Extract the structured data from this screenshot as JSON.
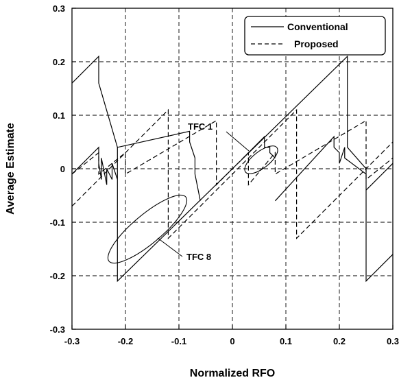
{
  "chart_data": {
    "type": "line",
    "title": "",
    "xlabel": "Normalized RFO",
    "ylabel": "Average Estimate",
    "xlim": [
      -0.3,
      0.3
    ],
    "ylim": [
      -0.3,
      0.3
    ],
    "xticks": [
      -0.3,
      -0.2,
      -0.1,
      0,
      0.1,
      0.2,
      0.3
    ],
    "yticks": [
      -0.3,
      -0.2,
      -0.1,
      0,
      0.1,
      0.2,
      0.3
    ],
    "xtick_labels": [
      "-0.3",
      "-0.2",
      "-0.1",
      "0",
      "0.1",
      "0.2",
      "0.3"
    ],
    "ytick_labels": [
      "-0.3",
      "-0.2",
      "-0.1",
      "0",
      "0.1",
      "0.2",
      "0.3"
    ],
    "grid": true,
    "legend_position": "top-right",
    "series": [
      {
        "name": "Conventional",
        "style": "solid",
        "x": [
          -0.3,
          -0.25,
          -0.25,
          -0.215,
          -0.215,
          0.215,
          0.215,
          0.25,
          0.25,
          0.3,
          null,
          -0.3,
          -0.25,
          -0.25,
          -0.245,
          -0.245,
          -0.235,
          -0.235,
          -0.225,
          -0.225,
          -0.215,
          -0.215,
          -0.08,
          -0.08,
          -0.07,
          -0.07,
          -0.06,
          null,
          0.02,
          0.06,
          0.06,
          0.07,
          0.07,
          0.08,
          null,
          0.08,
          0.19,
          0.19,
          0.2,
          0.2,
          0.21,
          0.21,
          0.25,
          0.25,
          0.3
        ],
        "y": [
          0.16,
          0.21,
          0.16,
          0.04,
          -0.21,
          0.21,
          0.04,
          0.0,
          -0.21,
          -0.16,
          null,
          -0.01,
          0.04,
          0.01,
          -0.02,
          0.02,
          -0.03,
          0.0,
          -0.02,
          0.01,
          -0.02,
          0.04,
          0.07,
          0.05,
          0.02,
          -0.01,
          -0.06,
          null,
          0.02,
          0.06,
          0.04,
          0.04,
          0.03,
          0.02,
          null,
          -0.06,
          0.06,
          0.04,
          0.03,
          0.01,
          0.04,
          0.02,
          -0.01,
          -0.04,
          0.01
        ]
      },
      {
        "name": "Proposed",
        "style": "dashed",
        "x": [
          -0.3,
          -0.12,
          -0.12,
          0.12,
          0.12,
          0.3,
          null,
          -0.3,
          -0.25,
          -0.25,
          -0.2,
          -0.2,
          -0.03,
          -0.03,
          0.03,
          0.03,
          0.08,
          0.08,
          0.25,
          0.25,
          0.3
        ],
        "y": [
          -0.07,
          0.11,
          -0.13,
          0.11,
          -0.13,
          0.05,
          null,
          -0.01,
          0.03,
          -0.01,
          0.03,
          -0.01,
          0.09,
          -0.03,
          0.03,
          -0.03,
          0.03,
          -0.01,
          0.09,
          -0.02,
          0.02
        ]
      }
    ],
    "annotations": [
      {
        "text": "TFC 1",
        "x": -0.02,
        "y": 0.08,
        "target_x": 0.05,
        "target_y": 0.03
      },
      {
        "text": "TFC 8",
        "x": -0.1,
        "y": -0.17,
        "target_x": -0.14,
        "target_y": -0.12
      }
    ]
  }
}
